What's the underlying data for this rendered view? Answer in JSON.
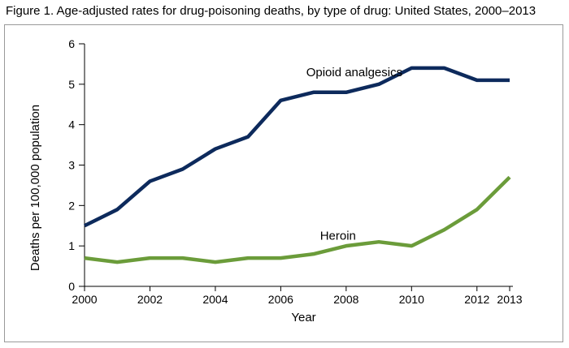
{
  "figure": {
    "title": "Figure 1. Age-adjusted rates for drug-poisoning deaths, by type of drug: United States, 2000–2013"
  },
  "chart_data": {
    "type": "line",
    "title": "Figure 1. Age-adjusted rates for drug-poisoning deaths, by type of drug: United States, 2000–2013",
    "xlabel": "Year",
    "ylabel": "Deaths per 100,000 population",
    "x": [
      2000,
      2001,
      2002,
      2003,
      2004,
      2005,
      2006,
      2007,
      2008,
      2009,
      2010,
      2011,
      2012,
      2013
    ],
    "xlim": [
      2000,
      2013
    ],
    "ylim": [
      0,
      6
    ],
    "x_ticks": [
      2000,
      2002,
      2004,
      2006,
      2008,
      2010,
      2012,
      2013
    ],
    "y_ticks": [
      0,
      1,
      2,
      3,
      4,
      5,
      6
    ],
    "grid": false,
    "legend": "none",
    "series": [
      {
        "name": "Opioid analgesics",
        "color": "#0d2a5c",
        "values": [
          1.5,
          1.9,
          2.6,
          2.9,
          3.4,
          3.7,
          4.6,
          4.8,
          4.8,
          5.0,
          5.4,
          5.4,
          5.1,
          5.1
        ]
      },
      {
        "name": "Heroin",
        "color": "#6b9c3a",
        "values": [
          0.7,
          0.6,
          0.7,
          0.7,
          0.6,
          0.7,
          0.7,
          0.8,
          1.0,
          1.1,
          1.0,
          1.4,
          1.9,
          2.7
        ]
      }
    ]
  }
}
